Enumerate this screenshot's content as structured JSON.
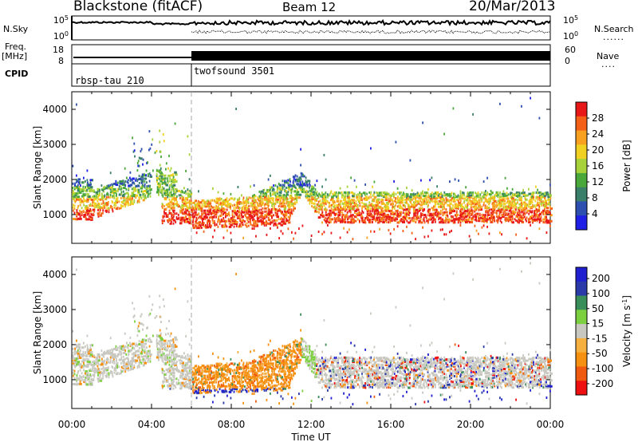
{
  "header": {
    "station": "Blackstone (fitACF)",
    "beam": "Beam 12",
    "date": "20/Mar/2013"
  },
  "strip_labels": {
    "nsky": "N.Sky",
    "nsearch": "N.Search",
    "freq": "Freq.",
    "mhz": "[MHz]",
    "cpid": "CPID",
    "nave": "Nave",
    "dots": "......",
    "dots_short": "...."
  },
  "strip_ticks": {
    "noise_left": [
      "10^5",
      "10^0"
    ],
    "noise_right": [
      "10^5",
      "10^0"
    ],
    "freq_left": [
      "18",
      "8"
    ],
    "nave_right": [
      "60",
      "0"
    ]
  },
  "cpid_segments": [
    {
      "label": "rbsp-tau 210",
      "start_ut": "00:00"
    },
    {
      "label": "twofsound 3501",
      "start_ut": "06:00"
    }
  ],
  "colors": {
    "power": [
      "#1f1fe6",
      "#2d4fb0",
      "#3a7f6a",
      "#4aa83a",
      "#a8d23a",
      "#f0d020",
      "#f8a020",
      "#f46018",
      "#e81818"
    ],
    "velocity": [
      "#ee1010",
      "#f05a10",
      "#f59010",
      "#f5b040",
      "#c8c8c0",
      "#7cd040",
      "#3a8e5a",
      "#2a3aa8",
      "#2020d0"
    ]
  },
  "chart_data": [
    {
      "type": "heatmap",
      "title": "Power",
      "xlabel": "Time UT",
      "ylabel": "Slant Range [km]",
      "xlim_hours": [
        0,
        24
      ],
      "ylim_km": [
        180,
        4500
      ],
      "x_ticks": [
        "00:00",
        "04:00",
        "08:00",
        "12:00",
        "16:00",
        "20:00",
        "00:00"
      ],
      "y_ticks": [
        1000,
        2000,
        3000,
        4000
      ],
      "colorbar": {
        "label": "Power [dB]",
        "ticks": [
          "4",
          "8",
          "12",
          "16",
          "20",
          "24",
          "28"
        ],
        "range": [
          0,
          30
        ]
      }
    },
    {
      "type": "heatmap",
      "title": "Velocity",
      "xlabel": "Time UT",
      "ylabel": "Slant Range [km]",
      "xlim_hours": [
        0,
        24
      ],
      "ylim_km": [
        180,
        4500
      ],
      "x_ticks": [
        "00:00",
        "04:00",
        "08:00",
        "12:00",
        "16:00",
        "20:00",
        "00:00"
      ],
      "y_ticks": [
        1000,
        2000,
        3000,
        4000
      ],
      "colorbar": {
        "label": "Velocity [m s^-1]",
        "ticks": [
          "200",
          "100",
          "50",
          "15",
          "-15",
          "-50",
          "-100",
          "-200"
        ],
        "range": [
          -250,
          250
        ]
      }
    }
  ],
  "axis_title": "Time UT"
}
